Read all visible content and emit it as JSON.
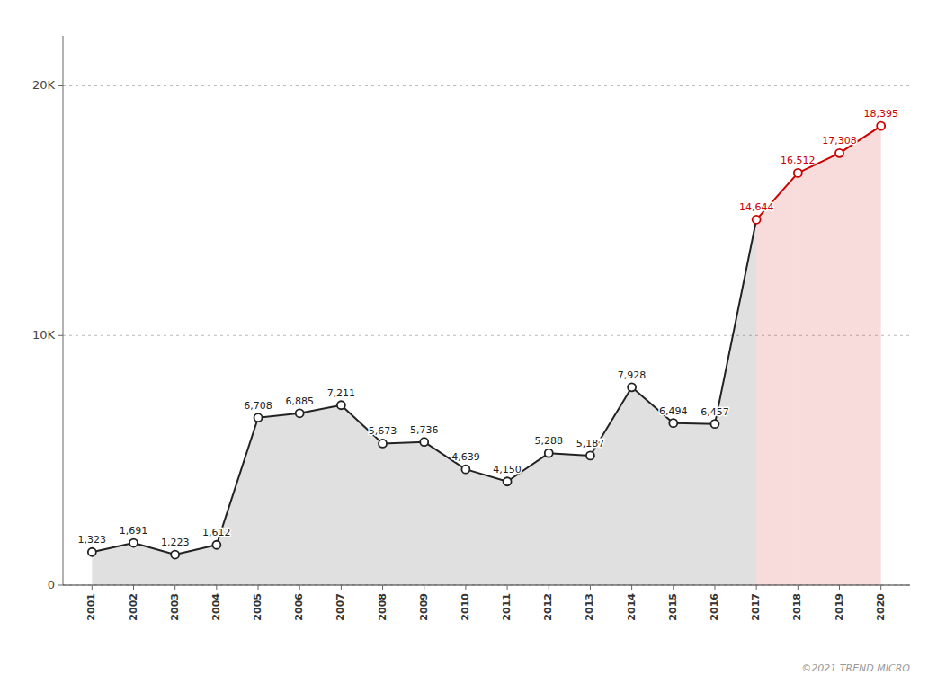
{
  "chart_data": {
    "type": "area",
    "x": [
      2001,
      2002,
      2003,
      2004,
      2005,
      2006,
      2007,
      2008,
      2009,
      2010,
      2011,
      2012,
      2013,
      2014,
      2015,
      2016,
      2017,
      2018,
      2019,
      2020
    ],
    "values": [
      1323,
      1691,
      1223,
      1612,
      6708,
      6885,
      7211,
      5673,
      5736,
      4639,
      4150,
      5288,
      5187,
      7928,
      6494,
      6457,
      14644,
      16512,
      17308,
      18395
    ],
    "value_labels": [
      "1,323",
      "1,691",
      "1,223",
      "1,612",
      "6,708",
      "6,885",
      "7,211",
      "5,673",
      "5,736",
      "4,639",
      "4,150",
      "5,288",
      "5,187",
      "7,928",
      "6,494",
      "6,457",
      "14,644",
      "16,512",
      "17,308",
      "18,395"
    ],
    "colors": [
      "#222222",
      "#222222",
      "#222222",
      "#222222",
      "#222222",
      "#222222",
      "#222222",
      "#222222",
      "#222222",
      "#222222",
      "#222222",
      "#222222",
      "#222222",
      "#222222",
      "#222222",
      "#222222",
      "#cc0000",
      "#cc0000",
      "#cc0000",
      "#cc0000"
    ],
    "marker": "circle",
    "data_labels": true,
    "xlim": [
      2000.3,
      2020.7
    ],
    "xticks": [
      2001,
      2002,
      2003,
      2004,
      2005,
      2006,
      2007,
      2008,
      2009,
      2010,
      2011,
      2012,
      2013,
      2014,
      2015,
      2016,
      2017,
      2018,
      2019,
      2020
    ],
    "ylim": [
      0,
      22000
    ],
    "yticks": [
      0,
      {
        "value": 10000,
        "label": "10K"
      },
      {
        "value": 20000,
        "label": "20K"
      }
    ],
    "grid": true,
    "annotations": [
      "©2021 TREND MICRO"
    ]
  }
}
